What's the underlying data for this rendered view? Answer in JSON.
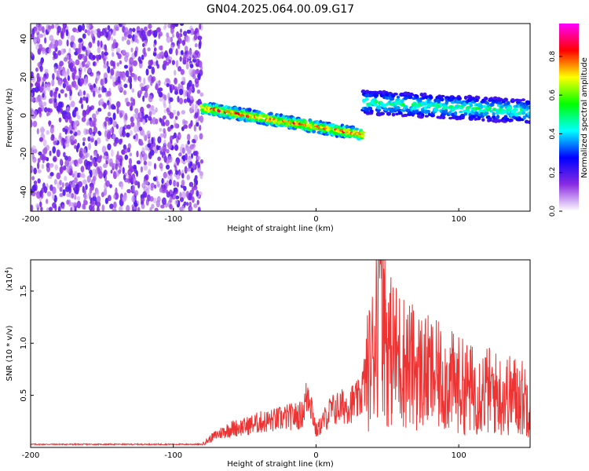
{
  "title": "GN04.2025.064.00.09.G17",
  "chart_data": [
    {
      "type": "heatmap",
      "xlabel": "Height of straight line (km)",
      "ylabel": "Frequency (Hz)",
      "xlim": [
        -200,
        150
      ],
      "ylim": [
        -50,
        48
      ],
      "xticks": [
        -200,
        -100,
        0,
        100
      ],
      "yticks": [
        -40,
        -20,
        0,
        20,
        40
      ],
      "grid": false,
      "colorbar": {
        "label": "Normalized spectral amplitude",
        "range": [
          0.0,
          0.97
        ],
        "ticks": [
          0.0,
          0.2,
          0.4,
          0.6,
          0.8
        ],
        "tick_labels": [
          "0.0",
          "0.2",
          "0.4",
          "0.6",
          "0.8"
        ],
        "colormap": [
          "#ffffff",
          "#8a2be2",
          "#0000ff",
          "#00ffff",
          "#00ff00",
          "#ffff00",
          "#ff0000",
          "#ff00ff"
        ]
      },
      "regions": [
        {
          "x": [
            -200,
            -80
          ],
          "freq": [
            -50,
            48
          ],
          "amplitude": [
            0.05,
            0.2
          ]
        },
        {
          "x": [
            -80,
            33
          ],
          "freq_start": 4,
          "freq_end": -10,
          "spread": 3,
          "amplitude": [
            0.3,
            0.9
          ]
        },
        {
          "x": [
            33,
            150
          ],
          "freq_start": 7,
          "freq_end": 2,
          "spread": 6,
          "amplitude": [
            0.2,
            0.55
          ]
        }
      ]
    },
    {
      "type": "line",
      "xlabel": "Height of straight line (km)",
      "ylabel": "SNR (10 * v/v)",
      "yscale_label": "(x10",
      "yscale_exp": "4",
      "xlim": [
        -200,
        150
      ],
      "ylim": [
        0,
        18000
      ],
      "xticks": [
        -200,
        -100,
        0,
        100
      ],
      "yticks": [
        5000,
        10000,
        15000
      ],
      "ytick_labels": [
        "0.5",
        "1.0",
        "1.5"
      ],
      "color": "#ee3333",
      "grid": false,
      "series": [
        {
          "x": [
            -200,
            -100,
            -80,
            -70,
            -60,
            -50,
            -40,
            -30,
            -20,
            -10,
            -5,
            0,
            5,
            10,
            20,
            30,
            40,
            45,
            50,
            60,
            70,
            80,
            90,
            100,
            110,
            120,
            130,
            140,
            150
          ],
          "y": [
            300,
            300,
            300,
            1200,
            1800,
            2000,
            2400,
            2600,
            2900,
            3100,
            5500,
            1500,
            2500,
            3500,
            4000,
            4500,
            9000,
            18000,
            9500,
            8500,
            7500,
            7000,
            6500,
            6000,
            5500,
            5500,
            5000,
            5000,
            4500
          ]
        }
      ]
    }
  ]
}
